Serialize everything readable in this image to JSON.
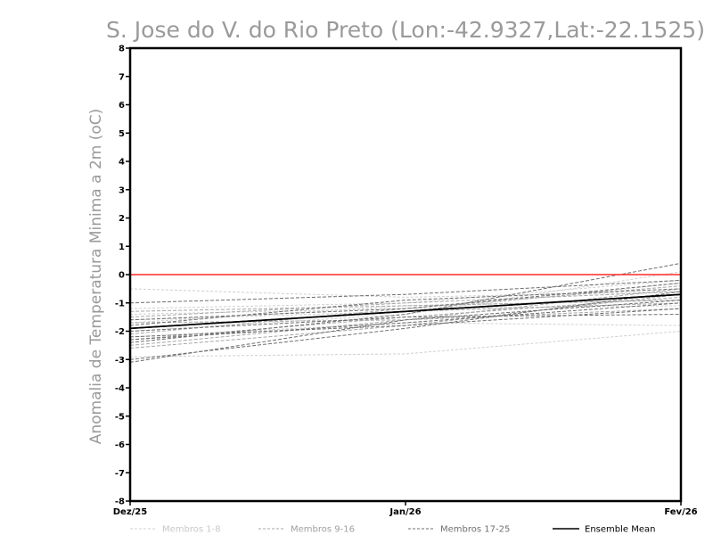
{
  "chart_data": {
    "type": "line",
    "title": "S. Jose do V. do Rio Preto (Lon:-42.9327,Lat:-22.1525)",
    "ylabel": "Anomalia de Temperatura Minima a 2m (oC)",
    "xlabel": "",
    "categories": [
      "Dez/25",
      "Jan/26",
      "Fev/26"
    ],
    "ylim": [
      -8,
      8
    ],
    "yticks": [
      8,
      7,
      6,
      5,
      4,
      3,
      2,
      1,
      0,
      -1,
      -2,
      -3,
      -4,
      -5,
      -6,
      -7,
      -8
    ],
    "grid": false,
    "legend_position": "bottom",
    "reference_line": {
      "y": 0,
      "color": "#ff2a2a"
    },
    "groups": [
      {
        "name": "Membros 1-8",
        "color": "#d0d0d0"
      },
      {
        "name": "Membros 9-16",
        "color": "#a6a6a6"
      },
      {
        "name": "Membros 17-25",
        "color": "#6e6e6e"
      },
      {
        "name": "Ensemble Mean",
        "color": "#000000"
      }
    ],
    "series": [
      {
        "group": 0,
        "values": [
          -0.5,
          -0.8,
          -0.6
        ]
      },
      {
        "group": 0,
        "values": [
          -1.6,
          -1.3,
          -0.3
        ]
      },
      {
        "group": 0,
        "values": [
          -2.9,
          -2.8,
          -2.0
        ]
      },
      {
        "group": 0,
        "values": [
          -2.2,
          -1.7,
          -1.8
        ]
      },
      {
        "group": 0,
        "values": [
          -1.2,
          -1.0,
          -0.2
        ]
      },
      {
        "group": 0,
        "values": [
          -1.7,
          -1.1,
          -0.9
        ]
      },
      {
        "group": 0,
        "values": [
          -2.0,
          -1.4,
          0.1
        ]
      },
      {
        "group": 0,
        "values": [
          -1.4,
          -1.2,
          -1.1
        ]
      },
      {
        "group": 1,
        "values": [
          -1.5,
          -1.0,
          -0.6
        ]
      },
      {
        "group": 1,
        "values": [
          -2.3,
          -1.5,
          -0.8
        ]
      },
      {
        "group": 1,
        "values": [
          -2.5,
          -1.6,
          -0.5
        ]
      },
      {
        "group": 1,
        "values": [
          -1.9,
          -1.3,
          -1.0
        ]
      },
      {
        "group": 1,
        "values": [
          -2.1,
          -1.2,
          -0.4
        ]
      },
      {
        "group": 1,
        "values": [
          -1.7,
          -1.6,
          -1.2
        ]
      },
      {
        "group": 1,
        "values": [
          -2.6,
          -1.8,
          -0.7
        ]
      },
      {
        "group": 1,
        "values": [
          -1.3,
          -1.1,
          -0.9
        ]
      },
      {
        "group": 2,
        "values": [
          -3.1,
          -1.6,
          -0.9
        ]
      },
      {
        "group": 2,
        "values": [
          -2.4,
          -1.4,
          0.4
        ]
      },
      {
        "group": 2,
        "values": [
          -1.0,
          -0.7,
          -0.2
        ]
      },
      {
        "group": 2,
        "values": [
          -2.2,
          -1.8,
          -1.2
        ]
      },
      {
        "group": 2,
        "values": [
          -1.8,
          -0.9,
          -0.5
        ]
      },
      {
        "group": 2,
        "values": [
          -2.0,
          -1.5,
          -1.4
        ]
      },
      {
        "group": 2,
        "values": [
          -3.0,
          -1.9,
          -0.6
        ]
      },
      {
        "group": 2,
        "values": [
          -1.6,
          -1.2,
          -0.3
        ]
      },
      {
        "group": 2,
        "values": [
          -2.3,
          -1.7,
          -1.0
        ]
      },
      {
        "group": 3,
        "values": [
          -1.9,
          -1.3,
          -0.7
        ]
      }
    ]
  }
}
